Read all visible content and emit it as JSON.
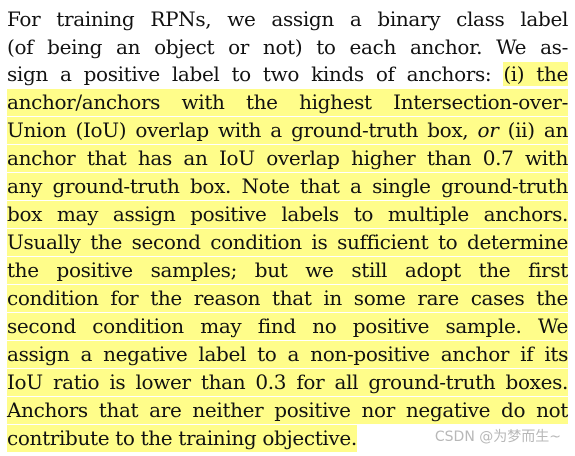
{
  "paragraph": {
    "line1": "For training RPNs, we assign a binary class label",
    "line2": "(of being an object or not) to each anchor. We as-",
    "line3_plain": "sign a positive label to two kinds of anchors: ",
    "line3_hl": "(i) the",
    "line4": "anchor/anchors with the highest Intersection-over-",
    "line5_a": "Union (IoU) overlap with a ground-truth box, ",
    "line5_or": "or",
    "line5_b": " (ii) an",
    "line6": "anchor that has an IoU overlap higher than 0.7 with",
    "line7": "any ground-truth box. Note that a single ground-truth",
    "line8": "box may assign positive labels to multiple anchors.",
    "line9": "Usually the second condition is sufficient to determine",
    "line10": "the positive samples; but we still adopt the first",
    "line11": "condition for the reason that in some rare cases the",
    "line12": "second condition may find no positive sample. We",
    "line13": "assign a negative label to a non-positive anchor if its",
    "line14": "IoU ratio is lower than 0.3 for all ground-truth boxes.",
    "line15": "Anchors that are neither positive nor negative do not",
    "line16": "contribute to the training objective."
  },
  "highlight_color": "#fffd8a",
  "watermark": "CSDN @为梦而生~"
}
